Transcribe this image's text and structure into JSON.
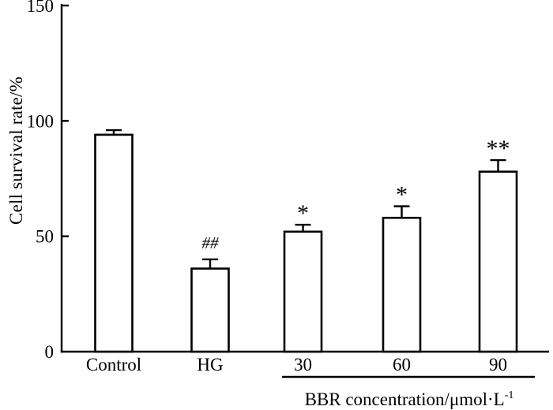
{
  "figure": {
    "background": "#ffffff"
  },
  "chart_data": {
    "type": "bar",
    "title": "",
    "ylabel": "Cell survival rate/%",
    "categories": [
      "Control",
      "HG",
      "30",
      "60",
      "90"
    ],
    "values": [
      94,
      36,
      52,
      58,
      78
    ],
    "errors": [
      2,
      4,
      3,
      5,
      5
    ],
    "annotations": [
      "",
      "##",
      "*",
      "*",
      "**"
    ],
    "ylim": [
      0,
      150
    ],
    "yticks": [
      0,
      50,
      100,
      150
    ],
    "grid": false,
    "legend": "none",
    "bar_fill": "#ffffff",
    "bar_stroke": "#000000",
    "axis_color": "#000000",
    "group_label": {
      "text": "BBR concentration/μmol·L",
      "sup": "-1",
      "applies_to": [
        "30",
        "60",
        "90"
      ]
    }
  }
}
